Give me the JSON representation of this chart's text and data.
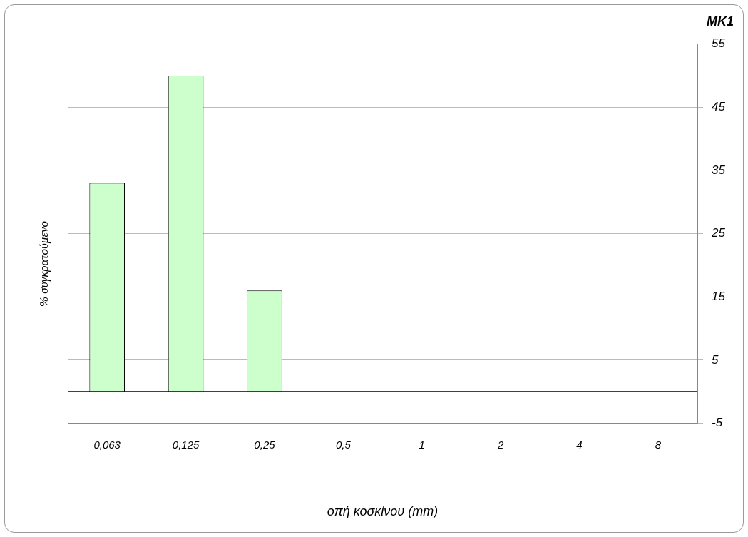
{
  "chart_data": {
    "type": "bar",
    "title": "MK1",
    "xlabel": "οπή κοσκίνου (mm)",
    "ylabel": "% συγκρατούμενο",
    "categories": [
      "0,063",
      "0,125",
      "0,25",
      "0,5",
      "1",
      "2",
      "4",
      "8"
    ],
    "values": [
      33,
      50,
      16,
      0,
      0,
      0,
      0,
      0
    ],
    "color": "#ccffcc",
    "ylim": [
      -5,
      55
    ],
    "yticks": [
      -5,
      5,
      15,
      25,
      35,
      45,
      55
    ],
    "grid": "y",
    "ref_lines": [
      {
        "axis": "y",
        "value": 0,
        "color": "#000000"
      }
    ]
  }
}
